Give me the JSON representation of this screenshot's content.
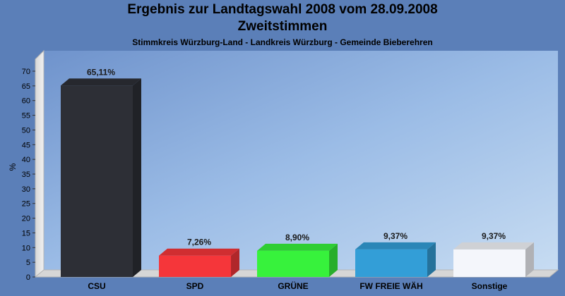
{
  "chart_data": {
    "type": "bar",
    "title": "Ergebnis zur Landtagswahl 2008 vom 28.09.2008",
    "title_line2": "Zweitstimmen",
    "subtitle": "Stimmkreis Würzburg-Land - Landkreis Würzburg - Gemeinde Bieberehren",
    "xlabel": "",
    "ylabel": "%",
    "ylim": [
      0,
      70
    ],
    "yticks": [
      "0",
      "5",
      "10",
      "15",
      "20",
      "25",
      "30",
      "35",
      "40",
      "45",
      "50",
      "55",
      "60",
      "65",
      "70"
    ],
    "grid": false,
    "categories": [
      "CSU",
      "SPD",
      "GRÜNE",
      "FW FREIE WÄH",
      "Sonstige"
    ],
    "values": [
      65.11,
      7.26,
      8.9,
      9.37,
      9.37
    ],
    "value_labels": [
      "65,11%",
      "7,26%",
      "8,90%",
      "9,37%",
      "9,37%"
    ],
    "colors": [
      "#2d2f36",
      "#f5363a",
      "#37f23c",
      "#339ed7",
      "#f4f6fb"
    ]
  }
}
